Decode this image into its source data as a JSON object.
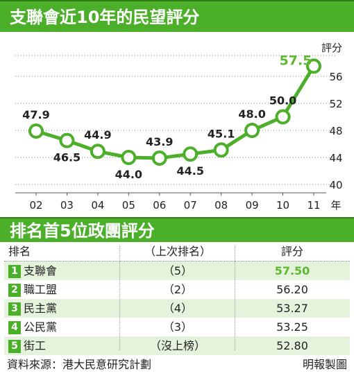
{
  "title": "支聯會近10年的民望評分",
  "colors": {
    "accent": "#4caf2a",
    "highlight": "#5cb82e",
    "row_alt": "#e6f3dc",
    "line": "#4caf2a"
  },
  "chart_data": {
    "type": "line",
    "title": "支聯會近10年的民望評分",
    "x": [
      "02",
      "03",
      "04",
      "05",
      "06",
      "07",
      "08",
      "09",
      "10",
      "11"
    ],
    "xunit": "年",
    "ylabel": "評分",
    "ylim": [
      40,
      58
    ],
    "yticks": [
      40,
      44,
      48,
      52,
      56
    ],
    "grid": "horizontal-dotted",
    "series": [
      {
        "values": [
          47.9,
          46.5,
          44.9,
          44.0,
          43.9,
          44.5,
          45.1,
          48.0,
          50.0,
          57.5
        ],
        "labels": [
          "47.9",
          "46.5",
          "44.9",
          "44.0",
          "43.9",
          "44.5",
          "45.1",
          "48.0",
          "50.0",
          "57.5"
        ]
      }
    ]
  },
  "table": {
    "title": "排名首5位政團評分",
    "headers": {
      "name": "排名",
      "prev": "（上次排名）",
      "score": "評分"
    },
    "rows": [
      {
        "rank": "1",
        "name": "支聯會",
        "prev": "（5）",
        "score": "57.50"
      },
      {
        "rank": "2",
        "name": "職工盟",
        "prev": "（2）",
        "score": "56.20"
      },
      {
        "rank": "3",
        "name": "民主黨",
        "prev": "（4）",
        "score": "53.27"
      },
      {
        "rank": "4",
        "name": "公民黨",
        "prev": "（3）",
        "score": "53.25"
      },
      {
        "rank": "5",
        "name": "街工",
        "prev": "（沒上榜）",
        "score": "52.80"
      }
    ]
  },
  "footer": {
    "source": "資料來源：港大民意研究計劃",
    "credit": "明報製圖"
  }
}
